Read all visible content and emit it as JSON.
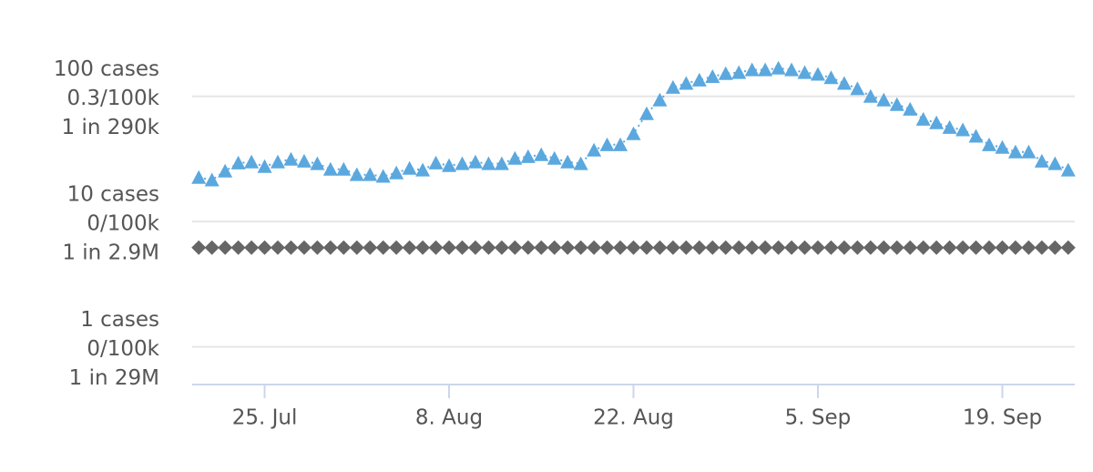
{
  "chart_data": {
    "type": "line",
    "log_y": true,
    "grid": true,
    "ylim": [
      0.5,
      400
    ],
    "yticks": [
      {
        "value": 100,
        "label": [
          "100 cases",
          "0.3/100k",
          "1 in 290k"
        ]
      },
      {
        "value": 10,
        "label": [
          "10 cases",
          "0/100k",
          "1 in 2.9M"
        ]
      },
      {
        "value": 1,
        "label": [
          "1 cases",
          "0/100k",
          "1 in 29M"
        ]
      }
    ],
    "categories": [
      null,
      null,
      null,
      null,
      null,
      "25. Jul",
      null,
      null,
      null,
      null,
      null,
      null,
      null,
      null,
      null,
      null,
      null,
      null,
      null,
      "8. Aug",
      null,
      null,
      null,
      null,
      null,
      null,
      null,
      null,
      null,
      null,
      null,
      null,
      null,
      "22. Aug",
      null,
      null,
      null,
      null,
      null,
      null,
      null,
      null,
      null,
      null,
      null,
      null,
      null,
      "5. Sep",
      null,
      null,
      null,
      null,
      null,
      null,
      null,
      null,
      null,
      null,
      null,
      null,
      null,
      "19. Sep",
      null,
      null,
      null,
      null,
      null
    ],
    "series": [
      {
        "color": "#5ba8df",
        "marker": "triangle",
        "line": "dotted",
        "values": [
          22.5,
          21.5,
          25.3,
          29.4,
          29.9,
          27.5,
          29.9,
          31.5,
          30.4,
          29,
          26.2,
          26.2,
          23.7,
          23.7,
          23,
          24.5,
          26.6,
          25.8,
          29.4,
          28,
          29,
          29.9,
          29,
          29,
          32,
          33,
          34.2,
          32,
          29.9,
          29,
          37.2,
          41.1,
          41.1,
          50.3,
          72.8,
          93.5,
          118,
          127,
          135,
          144,
          152,
          155,
          163,
          163,
          168,
          163,
          155,
          150,
          141,
          127,
          115,
          100,
          93.5,
          86,
          79,
          65.6,
          61.5,
          56.5,
          54,
          48,
          41.1,
          39.1,
          36,
          36,
          30.4,
          29,
          25.8
        ]
      },
      {
        "color": "#666666",
        "marker": "diamond",
        "line": "none",
        "values": [
          6.2,
          6.2,
          6.2,
          6.2,
          6.2,
          6.2,
          6.2,
          6.2,
          6.2,
          6.2,
          6.2,
          6.2,
          6.2,
          6.2,
          6.2,
          6.2,
          6.2,
          6.2,
          6.2,
          6.2,
          6.2,
          6.2,
          6.2,
          6.2,
          6.2,
          6.2,
          6.2,
          6.2,
          6.2,
          6.2,
          6.2,
          6.2,
          6.2,
          6.2,
          6.2,
          6.2,
          6.2,
          6.2,
          6.2,
          6.2,
          6.2,
          6.2,
          6.2,
          6.2,
          6.2,
          6.2,
          6.2,
          6.2,
          6.2,
          6.2,
          6.2,
          6.2,
          6.2,
          6.2,
          6.2,
          6.2,
          6.2,
          6.2,
          6.2,
          6.2,
          6.2,
          6.2,
          6.2,
          6.2,
          6.2,
          6.2,
          6.2
        ]
      }
    ]
  }
}
